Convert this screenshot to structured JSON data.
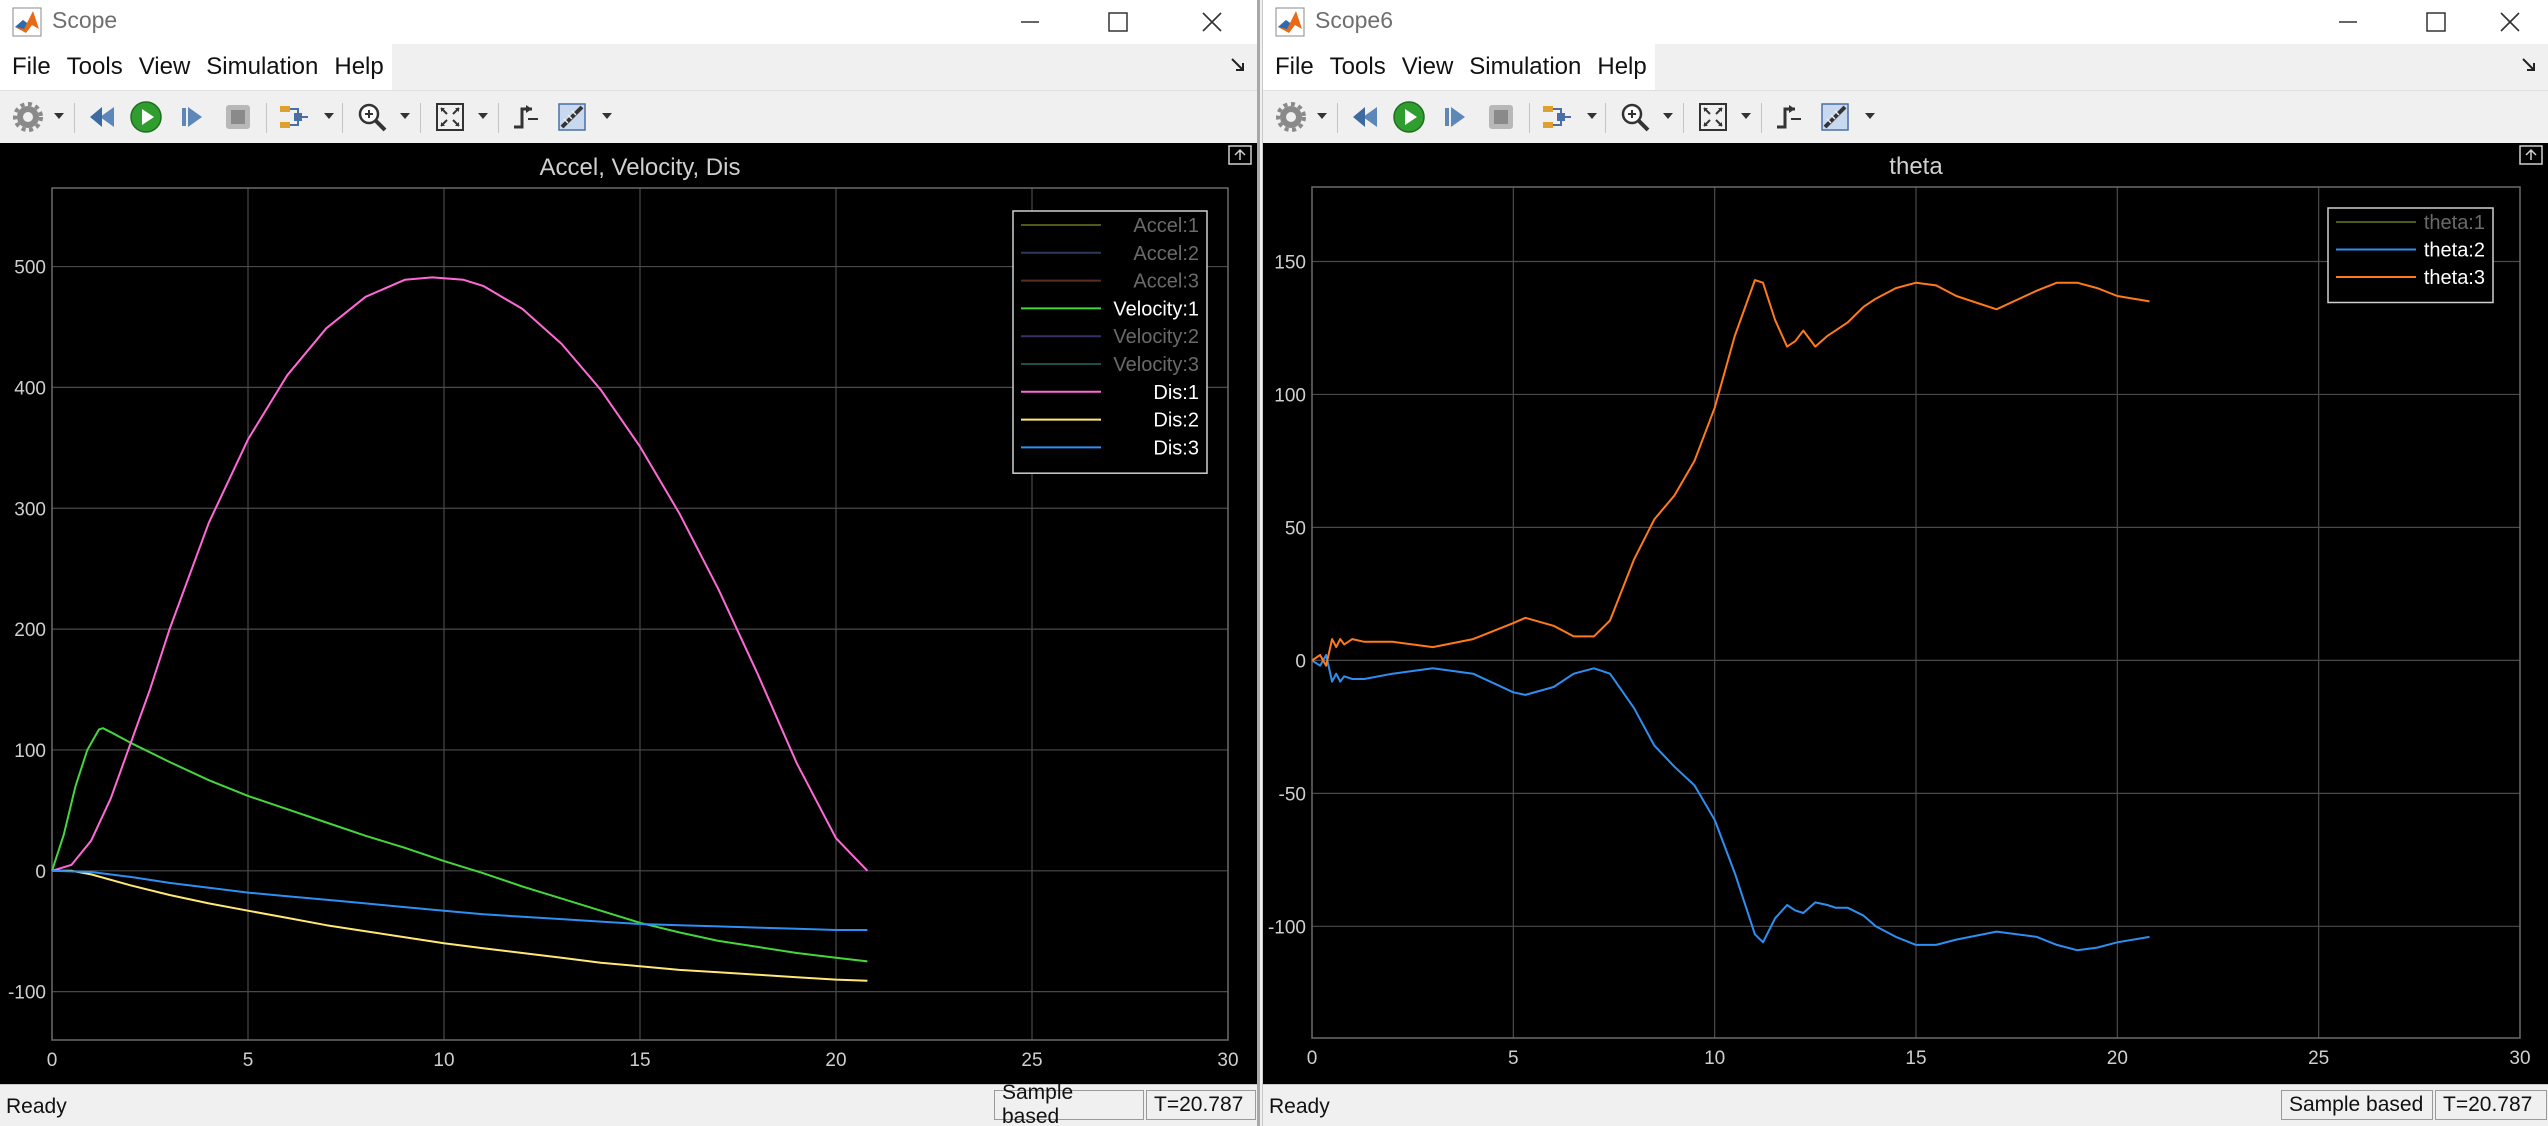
{
  "windows": [
    {
      "title": "Scope",
      "menu": [
        "File",
        "Tools",
        "View",
        "Simulation",
        "Help"
      ],
      "status": {
        "ready": "Ready",
        "sample_mode": "Sample based",
        "time": "T=20.787"
      },
      "chart_data": {
        "type": "line",
        "title": "Accel, Velocity, Dis",
        "xlim": [
          0,
          30
        ],
        "ylim": [
          -140,
          565
        ],
        "xticks": [
          0,
          5,
          10,
          15,
          20,
          25,
          30
        ],
        "yticks": [
          -100,
          0,
          100,
          200,
          300,
          400,
          500
        ],
        "grid": true,
        "background": "#000000",
        "legend_position": "top-right",
        "series": [
          {
            "name": "Accel:1",
            "color": "#4d5a1c",
            "visible": false,
            "x": [],
            "y": []
          },
          {
            "name": "Accel:2",
            "color": "#2a3a5a",
            "visible": false,
            "x": [],
            "y": []
          },
          {
            "name": "Accel:3",
            "color": "#5a2f1c",
            "visible": false,
            "x": [],
            "y": []
          },
          {
            "name": "Velocity:1",
            "color": "#45d63c",
            "visible": true,
            "x": [
              0,
              0.3,
              0.6,
              0.9,
              1.2,
              1.3,
              1.6,
              2,
              3,
              4,
              5,
              6,
              7,
              8,
              9,
              10,
              11,
              12,
              13,
              14,
              15,
              16,
              17,
              18,
              19,
              20,
              20.8
            ],
            "y": [
              0,
              30,
              70,
              100,
              117,
              118,
              113,
              106,
              90,
              75,
              62,
              51,
              40,
              29,
              19,
              8,
              -2,
              -13,
              -23,
              -33,
              -43,
              -51,
              -58,
              -63,
              -68,
              -72,
              -75
            ]
          },
          {
            "name": "Velocity:2",
            "color": "#3a2f66",
            "visible": false,
            "x": [],
            "y": []
          },
          {
            "name": "Velocity:3",
            "color": "#1f4e4e",
            "visible": false,
            "x": [],
            "y": []
          },
          {
            "name": "Dis:1",
            "color": "#ff69d7",
            "visible": true,
            "x": [
              0,
              0.5,
              1,
              1.5,
              2,
              2.5,
              3,
              4,
              5,
              6,
              7,
              8,
              9,
              9.7,
              10.5,
              11,
              12,
              13,
              14,
              15,
              16,
              17,
              18,
              19,
              20,
              20.8
            ],
            "y": [
              0,
              5,
              25,
              60,
              105,
              150,
              200,
              288,
              357,
              410,
              449,
              475,
              489,
              491,
              489,
              484,
              465,
              436,
              398,
              351,
              296,
              233,
              163,
              89,
              27,
              0
            ]
          },
          {
            "name": "Dis:2",
            "color": "#ffe873",
            "visible": true,
            "x": [
              0,
              0.5,
              1,
              2,
              3,
              4,
              5,
              6,
              7,
              8,
              9,
              10,
              11,
              12,
              13,
              14,
              15,
              16,
              17,
              18,
              19,
              20,
              20.8
            ],
            "y": [
              0,
              0,
              -3,
              -12,
              -20,
              -27,
              -33,
              -39,
              -45,
              -50,
              -55,
              -60,
              -64,
              -68,
              -72,
              -76,
              -79,
              -82,
              -84,
              -86,
              -88,
              -90,
              -91
            ]
          },
          {
            "name": "Dis:3",
            "color": "#2e8ff2",
            "visible": true,
            "x": [
              0,
              1,
              2,
              3,
              4,
              5,
              6,
              7,
              8,
              9,
              10,
              11,
              12,
              13,
              14,
              15,
              16,
              17,
              18,
              19,
              20,
              20.8
            ],
            "y": [
              0,
              -1,
              -5,
              -10,
              -14,
              -18,
              -21,
              -24,
              -27,
              -30,
              -33,
              -36,
              -38,
              -40,
              -42,
              -44,
              -45,
              -46,
              -47,
              -48,
              -49,
              -49
            ]
          }
        ]
      }
    },
    {
      "title": "Scope6",
      "menu": [
        "File",
        "Tools",
        "View",
        "Simulation",
        "Help"
      ],
      "status": {
        "ready": "Ready",
        "sample_mode": "Sample based",
        "time": "T=20.787"
      },
      "chart_data": {
        "type": "line",
        "title": "theta",
        "xlim": [
          0,
          30
        ],
        "ylim": [
          -142,
          178
        ],
        "xticks": [
          0,
          5,
          10,
          15,
          20,
          25,
          30
        ],
        "yticks": [
          -100,
          -50,
          0,
          50,
          100,
          150
        ],
        "grid": true,
        "background": "#000000",
        "legend_position": "top-right",
        "series": [
          {
            "name": "theta:1",
            "color": "#4d5a1c",
            "visible": false,
            "x": [],
            "y": []
          },
          {
            "name": "theta:2",
            "color": "#2e8ff2",
            "visible": true,
            "x": [
              0,
              0.2,
              0.35,
              0.5,
              0.6,
              0.7,
              0.8,
              1,
              1.3,
              2,
              3,
              4,
              5,
              5.3,
              6,
              6.5,
              7,
              7.4,
              8,
              8.5,
              9,
              9.5,
              10,
              10.5,
              11,
              11.2,
              11.5,
              11.8,
              12,
              12.2,
              12.5,
              12.8,
              13,
              13.3,
              13.7,
              14,
              14.5,
              15,
              15.5,
              16,
              17,
              18,
              18.5,
              19,
              19.5,
              20,
              20.8
            ],
            "y": [
              0,
              -2,
              2,
              -8,
              -5,
              -8,
              -6,
              -7,
              -7,
              -5,
              -3,
              -5,
              -12,
              -13,
              -10,
              -5,
              -3,
              -5,
              -18,
              -32,
              -40,
              -47,
              -60,
              -80,
              -103,
              -106,
              -97,
              -92,
              -94,
              -95,
              -91,
              -92,
              -93,
              -93,
              -96,
              -100,
              -104,
              -107,
              -107,
              -105,
              -102,
              -104,
              -107,
              -109,
              -108,
              -106,
              -104
            ]
          },
          {
            "name": "theta:3",
            "color": "#ff7a1a",
            "visible": true,
            "x": [
              0,
              0.2,
              0.35,
              0.5,
              0.6,
              0.7,
              0.8,
              1,
              1.3,
              2,
              3,
              4,
              5,
              5.3,
              6,
              6.5,
              7,
              7.4,
              8,
              8.5,
              9,
              9.5,
              10,
              10.5,
              11,
              11.2,
              11.5,
              11.8,
              12,
              12.2,
              12.5,
              12.8,
              13,
              13.3,
              13.7,
              14,
              14.5,
              15,
              15.5,
              16,
              17,
              18,
              18.5,
              19,
              19.5,
              20,
              20.8
            ],
            "y": [
              0,
              2,
              -2,
              8,
              5,
              8,
              6,
              8,
              7,
              7,
              5,
              8,
              14,
              16,
              13,
              9,
              9,
              15,
              38,
              53,
              62,
              75,
              95,
              122,
              143,
              142,
              128,
              118,
              120,
              124,
              118,
              122,
              124,
              127,
              133,
              136,
              140,
              142,
              141,
              137,
              132,
              139,
              142,
              142,
              140,
              137,
              135
            ]
          }
        ]
      }
    }
  ]
}
